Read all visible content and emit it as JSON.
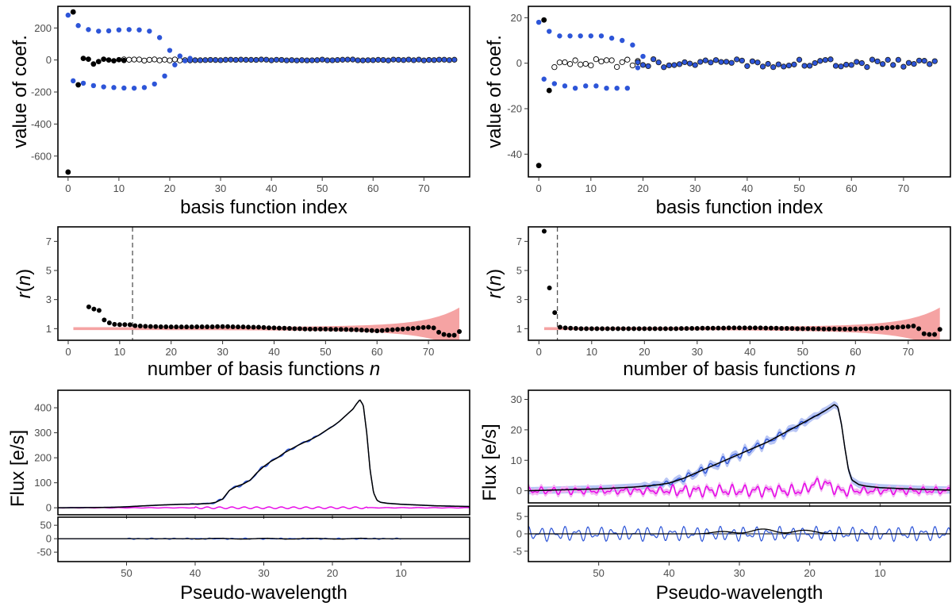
{
  "colors": {
    "black": "#000000",
    "blue": "#2d55d8",
    "magenta": "#e600e6",
    "pink_band": "#f5a3a3",
    "blue_band": "#b9c6f5",
    "magenta_band": "#f2b3f2",
    "dashed": "#555555"
  },
  "chart_data": [
    {
      "id": "coef-left",
      "type": "scatter",
      "xlabel": "basis function index",
      "ylabel": "value of coef.",
      "xlim": [
        -2,
        79
      ],
      "ylim": [
        -730,
        335
      ],
      "xticks": [
        0,
        10,
        20,
        30,
        40,
        50,
        60,
        70
      ],
      "yticks": [
        -600,
        -400,
        -200,
        0,
        200
      ],
      "blue_upper": [
        [
          0,
          280
        ],
        [
          2,
          215
        ],
        [
          4,
          190
        ],
        [
          6,
          180
        ],
        [
          8,
          182
        ],
        [
          10,
          188
        ],
        [
          12,
          190
        ],
        [
          14,
          188
        ],
        [
          16,
          180
        ],
        [
          18,
          140
        ],
        [
          20,
          60
        ],
        [
          22,
          25
        ],
        [
          24,
          10
        ]
      ],
      "blue_lower": [
        [
          1,
          -130
        ],
        [
          3,
          -145
        ],
        [
          5,
          -160
        ],
        [
          7,
          -168
        ],
        [
          9,
          -172
        ],
        [
          11,
          -175
        ],
        [
          13,
          -176
        ],
        [
          15,
          -172
        ],
        [
          17,
          -150
        ],
        [
          19,
          -100
        ],
        [
          21,
          -30
        ],
        [
          23,
          -5
        ]
      ],
      "black_points": [
        [
          0,
          -700
        ],
        [
          1,
          300
        ],
        [
          2,
          -155
        ],
        [
          3,
          10
        ],
        [
          4,
          5
        ],
        [
          5,
          -25
        ],
        [
          6,
          -10
        ],
        [
          7,
          5
        ],
        [
          8,
          0
        ],
        [
          9,
          -5
        ],
        [
          10,
          2
        ],
        [
          11,
          -3
        ]
      ],
      "open_points_range": [
        11,
        24
      ],
      "filled_points_range": [
        24,
        76
      ],
      "filled_amp": 3,
      "open_amp": 4
    },
    {
      "id": "coef-right",
      "type": "scatter",
      "xlabel": "basis function index",
      "ylabel": "value of coef.",
      "xlim": [
        -2,
        79
      ],
      "ylim": [
        -50,
        25
      ],
      "xticks": [
        0,
        10,
        20,
        30,
        40,
        50,
        60,
        70
      ],
      "yticks": [
        -40,
        -20,
        0,
        20
      ],
      "blue_upper": [
        [
          0,
          18
        ],
        [
          2,
          14
        ],
        [
          4,
          12
        ],
        [
          6,
          12
        ],
        [
          8,
          12
        ],
        [
          10,
          12
        ],
        [
          12,
          12
        ],
        [
          14,
          11
        ],
        [
          16,
          10
        ],
        [
          18,
          8
        ],
        [
          20,
          3
        ]
      ],
      "blue_lower": [
        [
          1,
          -7
        ],
        [
          3,
          -9
        ],
        [
          5,
          -10
        ],
        [
          7,
          -11
        ],
        [
          9,
          -10
        ],
        [
          11,
          -10
        ],
        [
          13,
          -11
        ],
        [
          15,
          -11
        ],
        [
          17,
          -11
        ],
        [
          19,
          -2
        ]
      ],
      "black_points": [
        [
          0,
          -45
        ],
        [
          1,
          19
        ],
        [
          2,
          -12
        ]
      ],
      "open_points_range": [
        3,
        19
      ],
      "filled_points_range": [
        19,
        76
      ],
      "filled_amp": 1.8,
      "open_amp": 1.8
    },
    {
      "id": "rn-left",
      "type": "scatter",
      "xlabel": "number of basis functions ",
      "xlabel_italic": "n",
      "ylabel": "r",
      "ylabel_italic": "n",
      "xlim": [
        -2,
        78
      ],
      "ylim": [
        0.2,
        8.0
      ],
      "xticks": [
        0,
        10,
        20,
        30,
        40,
        50,
        60,
        70
      ],
      "yticks": [
        1,
        3,
        5,
        7
      ],
      "dashed_x": 12.5,
      "band_start": 1,
      "points": [
        [
          4,
          2.5
        ],
        [
          5,
          2.35
        ],
        [
          6,
          2.25
        ],
        [
          7,
          1.6
        ],
        [
          8,
          1.4
        ],
        [
          9,
          1.3
        ],
        [
          10,
          1.28
        ],
        [
          11,
          1.28
        ],
        [
          12,
          1.27
        ],
        [
          13,
          1.2
        ],
        [
          14,
          1.18
        ],
        [
          15,
          1.16
        ],
        [
          16,
          1.15
        ],
        [
          17,
          1.14
        ],
        [
          18,
          1.13
        ],
        [
          19,
          1.13
        ],
        [
          20,
          1.12
        ],
        [
          21,
          1.12
        ],
        [
          22,
          1.12
        ],
        [
          23,
          1.12
        ],
        [
          24,
          1.12
        ],
        [
          25,
          1.13
        ],
        [
          26,
          1.13
        ],
        [
          27,
          1.13
        ],
        [
          28,
          1.13
        ],
        [
          29,
          1.14
        ],
        [
          30,
          1.14
        ],
        [
          31,
          1.14
        ],
        [
          32,
          1.13
        ],
        [
          33,
          1.12
        ],
        [
          34,
          1.12
        ],
        [
          35,
          1.11
        ],
        [
          36,
          1.1
        ],
        [
          37,
          1.1
        ],
        [
          38,
          1.08
        ],
        [
          39,
          1.06
        ],
        [
          40,
          1.05
        ],
        [
          41,
          1.04
        ],
        [
          42,
          1.03
        ],
        [
          43,
          1.02
        ],
        [
          44,
          1.0
        ],
        [
          45,
          1.0
        ],
        [
          46,
          0.98
        ],
        [
          47,
          0.97
        ],
        [
          48,
          0.97
        ],
        [
          49,
          0.97
        ],
        [
          50,
          0.97
        ],
        [
          51,
          0.96
        ],
        [
          52,
          0.95
        ],
        [
          53,
          0.95
        ],
        [
          54,
          0.94
        ],
        [
          55,
          0.93
        ],
        [
          56,
          0.92
        ],
        [
          57,
          0.9
        ],
        [
          58,
          0.88
        ],
        [
          59,
          0.87
        ],
        [
          60,
          0.85
        ],
        [
          61,
          0.87
        ],
        [
          62,
          0.9
        ],
        [
          63,
          0.92
        ],
        [
          64,
          0.95
        ],
        [
          65,
          0.97
        ],
        [
          66,
          1.0
        ],
        [
          67,
          1.02
        ],
        [
          68,
          1.05
        ],
        [
          69,
          1.08
        ],
        [
          70,
          1.1
        ],
        [
          71,
          1.05
        ],
        [
          72,
          0.75
        ],
        [
          73,
          0.6
        ],
        [
          74,
          0.55
        ],
        [
          75,
          0.55
        ],
        [
          76,
          0.8
        ]
      ]
    },
    {
      "id": "rn-right",
      "type": "scatter",
      "xlabel": "number of basis functions ",
      "xlabel_italic": "n",
      "ylabel": "r",
      "ylabel_italic": "n",
      "xlim": [
        -2,
        78
      ],
      "ylim": [
        0.2,
        8.0
      ],
      "xticks": [
        0,
        10,
        20,
        30,
        40,
        50,
        60,
        70
      ],
      "yticks": [
        1,
        3,
        5,
        7
      ],
      "dashed_x": 3.5,
      "band_start": 1,
      "points": [
        [
          1,
          7.7
        ],
        [
          2,
          3.8
        ],
        [
          3,
          2.1
        ],
        [
          4,
          1.1
        ],
        [
          5,
          1.05
        ],
        [
          6,
          1.03
        ],
        [
          7,
          1.02
        ],
        [
          8,
          1.0
        ],
        [
          9,
          1.0
        ],
        [
          10,
          1.0
        ],
        [
          11,
          1.0
        ],
        [
          12,
          1.0
        ],
        [
          13,
          1.0
        ],
        [
          14,
          1.0
        ],
        [
          15,
          1.0
        ],
        [
          16,
          1.0
        ],
        [
          17,
          1.0
        ],
        [
          18,
          1.0
        ],
        [
          19,
          1.0
        ],
        [
          20,
          1.0
        ],
        [
          21,
          1.0
        ],
        [
          22,
          1.0
        ],
        [
          23,
          1.0
        ],
        [
          24,
          1.0
        ],
        [
          25,
          1.0
        ],
        [
          26,
          1.0
        ],
        [
          27,
          1.01
        ],
        [
          28,
          1.01
        ],
        [
          29,
          1.02
        ],
        [
          30,
          1.02
        ],
        [
          31,
          1.03
        ],
        [
          32,
          1.03
        ],
        [
          33,
          1.03
        ],
        [
          34,
          1.04
        ],
        [
          35,
          1.04
        ],
        [
          36,
          1.05
        ],
        [
          37,
          1.05
        ],
        [
          38,
          1.05
        ],
        [
          39,
          1.05
        ],
        [
          40,
          1.05
        ],
        [
          41,
          1.05
        ],
        [
          42,
          1.05
        ],
        [
          43,
          1.04
        ],
        [
          44,
          1.04
        ],
        [
          45,
          1.03
        ],
        [
          46,
          1.02
        ],
        [
          47,
          1.02
        ],
        [
          48,
          1.01
        ],
        [
          49,
          1.0
        ],
        [
          50,
          1.0
        ],
        [
          51,
          1.0
        ],
        [
          52,
          0.99
        ],
        [
          53,
          0.99
        ],
        [
          54,
          0.98
        ],
        [
          55,
          0.98
        ],
        [
          56,
          0.98
        ],
        [
          57,
          0.97
        ],
        [
          58,
          0.97
        ],
        [
          59,
          0.97
        ],
        [
          60,
          0.98
        ],
        [
          61,
          0.99
        ],
        [
          62,
          1.0
        ],
        [
          63,
          1.0
        ],
        [
          64,
          1.02
        ],
        [
          65,
          1.04
        ],
        [
          66,
          1.06
        ],
        [
          67,
          1.08
        ],
        [
          68,
          1.1
        ],
        [
          69,
          1.12
        ],
        [
          70,
          1.15
        ],
        [
          71,
          1.18
        ],
        [
          72,
          1.0
        ],
        [
          73,
          0.65
        ],
        [
          74,
          0.6
        ],
        [
          75,
          0.6
        ],
        [
          76,
          0.95
        ]
      ]
    },
    {
      "id": "flux-left",
      "type": "line",
      "ylabel": "Flux [e/s]",
      "xlim": [
        60,
        0
      ],
      "ylim": [
        -28,
        470
      ],
      "xticks": [
        50,
        40,
        30,
        20,
        10
      ],
      "yticks": [
        0,
        100,
        200,
        300,
        400
      ],
      "main_series": [
        [
          60,
          0
        ],
        [
          55,
          1
        ],
        [
          52,
          2
        ],
        [
          50,
          4
        ],
        [
          48,
          7
        ],
        [
          45,
          11
        ],
        [
          42,
          14
        ],
        [
          40,
          15
        ],
        [
          38,
          17
        ],
        [
          37,
          22
        ],
        [
          36,
          35
        ],
        [
          35,
          70
        ],
        [
          34,
          85
        ],
        [
          33,
          95
        ],
        [
          32,
          110
        ],
        [
          31,
          140
        ],
        [
          30,
          165
        ],
        [
          29,
          185
        ],
        [
          28,
          200
        ],
        [
          27,
          220
        ],
        [
          26,
          235
        ],
        [
          25,
          250
        ],
        [
          24,
          263
        ],
        [
          23,
          275
        ],
        [
          22,
          290
        ],
        [
          21,
          308
        ],
        [
          20,
          325
        ],
        [
          19,
          345
        ],
        [
          18,
          370
        ],
        [
          17,
          395
        ],
        [
          16.5,
          415
        ],
        [
          16,
          432
        ],
        [
          15.5,
          410
        ],
        [
          15,
          300
        ],
        [
          14.5,
          150
        ],
        [
          14,
          60
        ],
        [
          13.5,
          30
        ],
        [
          13,
          22
        ],
        [
          12,
          18
        ],
        [
          10,
          14
        ],
        [
          5,
          8
        ],
        [
          0,
          5
        ]
      ],
      "wiggle": {
        "start": 42,
        "end": 18,
        "amp": 7,
        "period": 2.0
      },
      "blue_band_width": 3,
      "residual": {
        "yticks": [
          -50,
          0,
          50
        ],
        "ylim": [
          -85,
          80
        ],
        "amp": 2.5,
        "start": 50,
        "end": 10
      }
    },
    {
      "id": "flux-right",
      "type": "line",
      "ylabel": "Flux [e/s]",
      "xlim": [
        60,
        0
      ],
      "ylim": [
        -4,
        33
      ],
      "xticks": [
        50,
        40,
        30,
        20,
        10
      ],
      "yticks": [
        0,
        10,
        20,
        30
      ],
      "main_series": [
        [
          60,
          0
        ],
        [
          55,
          0.3
        ],
        [
          50,
          0.6
        ],
        [
          45,
          1.2
        ],
        [
          42,
          1.8
        ],
        [
          40,
          2.5
        ],
        [
          38,
          4
        ],
        [
          36,
          6
        ],
        [
          34,
          8
        ],
        [
          32,
          10
        ],
        [
          30,
          12
        ],
        [
          28,
          14
        ],
        [
          26,
          16
        ],
        [
          24,
          18.5
        ],
        [
          22,
          21
        ],
        [
          20,
          23.5
        ],
        [
          18,
          26
        ],
        [
          17,
          27.5
        ],
        [
          16.5,
          28.3
        ],
        [
          16,
          27.5
        ],
        [
          15.5,
          22
        ],
        [
          15,
          14
        ],
        [
          14.5,
          7
        ],
        [
          14,
          3.5
        ],
        [
          13,
          2
        ],
        [
          12,
          1.5
        ],
        [
          10,
          1
        ],
        [
          5,
          0.5
        ],
        [
          0,
          0.2
        ]
      ],
      "wiggle": {
        "start": 45,
        "end": 17,
        "amp": 1.6,
        "period": 1.6
      },
      "blue_band_width": 1.2,
      "magenta_wiggle": {
        "amp": 1.6,
        "period": 1.7
      },
      "residual": {
        "yticks": [
          -5,
          0,
          5
        ],
        "ylim": [
          -8,
          8
        ],
        "amp": 2.2,
        "start": 60,
        "end": 0,
        "black_bump": {
          "start": 36,
          "end": 15,
          "amp": 1.4
        }
      }
    }
  ],
  "shared": {
    "pseudo_xlabel": "Pseudo-wavelength"
  }
}
